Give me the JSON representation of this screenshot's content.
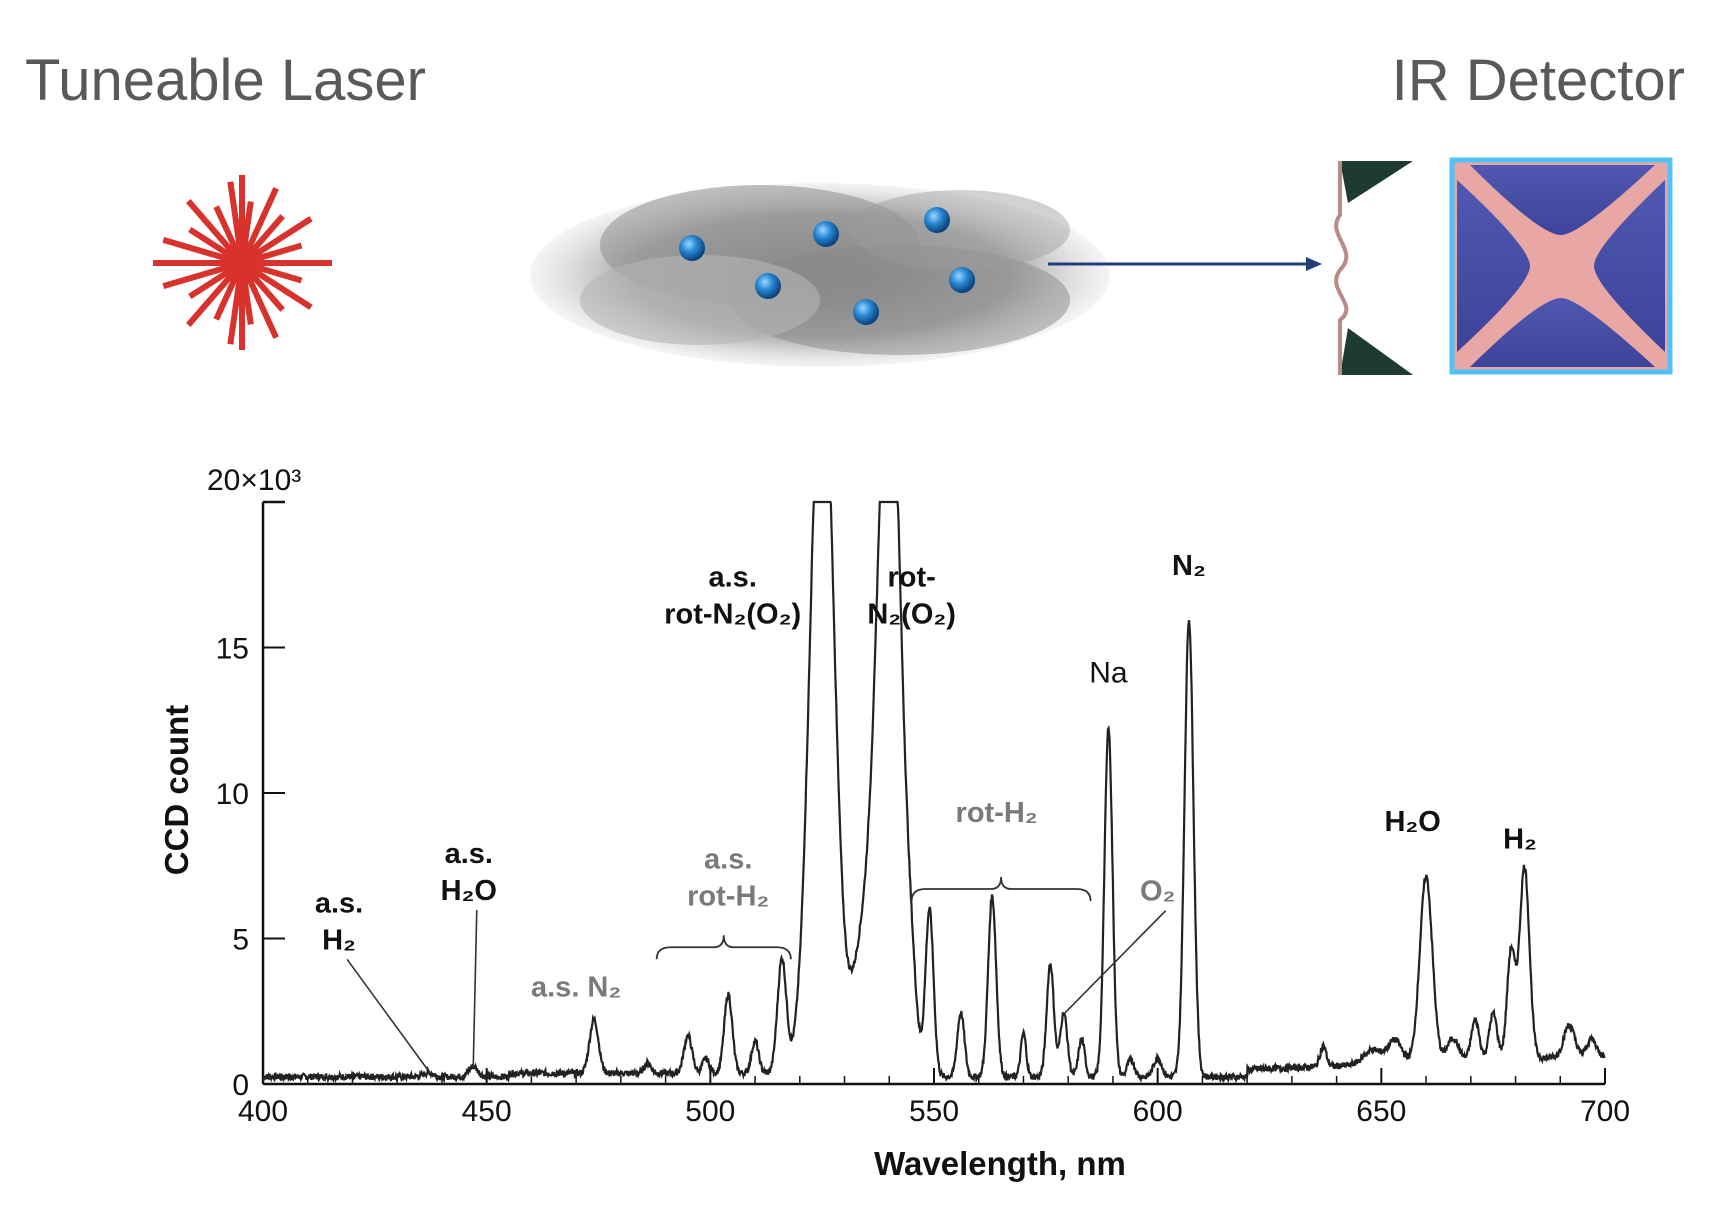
{
  "diagram": {
    "laser_label": "Tuneable Laser",
    "detector_label": "IR Detector"
  },
  "colors": {
    "laser": "#d9312b",
    "molecule": "#1f7fc9",
    "beam_out": "#1f3f7a",
    "cloud": "#9a9a9a",
    "mirror": "#1e3b33",
    "detector_frame": "#4fc3f7",
    "detector_pink": "#e8a7a5",
    "detector_blue": "#4950a8",
    "trace": "#222222"
  },
  "chart_data": {
    "type": "line",
    "title": "",
    "xlabel": "Wavelength, nm",
    "ylabel": "CCD count",
    "xlim": [
      400,
      700
    ],
    "ylim": [
      0,
      20000
    ],
    "y_exponent_label": "20×10³",
    "x_ticks": [
      "400",
      "450",
      "500",
      "550",
      "600",
      "650",
      "700"
    ],
    "y_ticks": [
      "0",
      "5",
      "10",
      "15"
    ],
    "grid": false,
    "baseline": 250,
    "peaks": [
      {
        "x": 437,
        "h": 150,
        "w": 1.0
      },
      {
        "x": 447,
        "h": 350,
        "w": 1.0
      },
      {
        "x": 474,
        "h": 1850,
        "w": 1.0
      },
      {
        "x": 486,
        "h": 350,
        "w": 0.8
      },
      {
        "x": 495,
        "h": 1300,
        "w": 0.9
      },
      {
        "x": 499,
        "h": 500,
        "w": 0.8
      },
      {
        "x": 504,
        "h": 2700,
        "w": 0.9
      },
      {
        "x": 510,
        "h": 1100,
        "w": 0.8
      },
      {
        "x": 516,
        "h": 3900,
        "w": 1.0
      },
      {
        "x": 525,
        "h": 26000,
        "w": 2.6
      },
      {
        "x": 534,
        "h": 4000,
        "w": 2.5
      },
      {
        "x": 540,
        "h": 26000,
        "w": 2.6
      },
      {
        "x": 545,
        "h": 1600,
        "w": 1.2
      },
      {
        "x": 549,
        "h": 5700,
        "w": 0.9
      },
      {
        "x": 556,
        "h": 2200,
        "w": 0.8
      },
      {
        "x": 563,
        "h": 6200,
        "w": 0.9
      },
      {
        "x": 570,
        "h": 1500,
        "w": 0.6
      },
      {
        "x": 576,
        "h": 3900,
        "w": 0.8
      },
      {
        "x": 579,
        "h": 2200,
        "w": 0.8
      },
      {
        "x": 583,
        "h": 1300,
        "w": 0.7
      },
      {
        "x": 589,
        "h": 12000,
        "w": 0.9
      },
      {
        "x": 594,
        "h": 600,
        "w": 0.8
      },
      {
        "x": 600,
        "h": 650,
        "w": 0.9
      },
      {
        "x": 607,
        "h": 15700,
        "w": 1.0
      },
      {
        "x": 637,
        "h": 700,
        "w": 0.7
      },
      {
        "x": 648,
        "h": 500,
        "w": 2.0
      },
      {
        "x": 653,
        "h": 800,
        "w": 1.6
      },
      {
        "x": 660,
        "h": 6400,
        "w": 1.4
      },
      {
        "x": 666,
        "h": 800,
        "w": 1.3
      },
      {
        "x": 671,
        "h": 1400,
        "w": 0.9
      },
      {
        "x": 675,
        "h": 1600,
        "w": 0.9
      },
      {
        "x": 679,
        "h": 3700,
        "w": 0.9
      },
      {
        "x": 682,
        "h": 6600,
        "w": 1.1
      },
      {
        "x": 692,
        "h": 1100,
        "w": 1.2
      },
      {
        "x": 697,
        "h": 600,
        "w": 1.0
      }
    ],
    "annotations": [
      {
        "id": "as-h2",
        "lines": [
          "a.s.",
          "H₂"
        ],
        "style": "bold",
        "label_at": [
          417,
          5900
        ],
        "points_to": [
          437,
          450
        ]
      },
      {
        "id": "as-h2o",
        "lines": [
          "a.s.",
          "H₂O"
        ],
        "style": "bold",
        "label_at": [
          446,
          7600
        ],
        "points_to": [
          447,
          600
        ]
      },
      {
        "id": "as-n2",
        "lines": [
          "a.s. N₂"
        ],
        "style": "grey",
        "label_at": [
          470,
          3000
        ],
        "points_to": null
      },
      {
        "id": "as-rot-h2",
        "lines": [
          "a.s.",
          "rot-H₂"
        ],
        "style": "grey",
        "label_at": [
          504,
          7400
        ],
        "points_to": null
      },
      {
        "id": "as-rot-n2o2",
        "lines": [
          "a.s.",
          "rot-N₂(O₂)"
        ],
        "style": "bold",
        "label_at": [
          505,
          17100
        ],
        "points_to": null
      },
      {
        "id": "rot-n2o2",
        "lines": [
          "rot-",
          "N₂(O₂)"
        ],
        "style": "bold",
        "label_at": [
          545,
          17100
        ],
        "points_to": null
      },
      {
        "id": "rot-h2",
        "lines": [
          "rot-H₂"
        ],
        "style": "grey",
        "label_at": [
          564,
          9000
        ],
        "points_to": null
      },
      {
        "id": "na",
        "lines": [
          "Na"
        ],
        "style": "normal",
        "label_at": [
          589,
          13800
        ],
        "points_to": null
      },
      {
        "id": "n2",
        "lines": [
          "N₂"
        ],
        "style": "bold",
        "label_at": [
          607,
          17500
        ],
        "points_to": null
      },
      {
        "id": "o2",
        "lines": [
          "O₂"
        ],
        "style": "grey",
        "label_at": [
          600,
          6300
        ],
        "points_to": [
          579,
          2400
        ]
      },
      {
        "id": "h2o",
        "lines": [
          "H₂O"
        ],
        "style": "bold",
        "label_at": [
          657,
          8700
        ],
        "points_to": null
      },
      {
        "id": "h2",
        "lines": [
          "H₂"
        ],
        "style": "bold",
        "label_at": [
          681,
          8100
        ],
        "points_to": null
      }
    ],
    "braces": [
      {
        "id": "brace-as-rot-h2",
        "x_from": 488,
        "x_to": 518,
        "y": 4700
      },
      {
        "id": "brace-rot-h2",
        "x_from": 545,
        "x_to": 585,
        "y": 6700
      }
    ]
  }
}
